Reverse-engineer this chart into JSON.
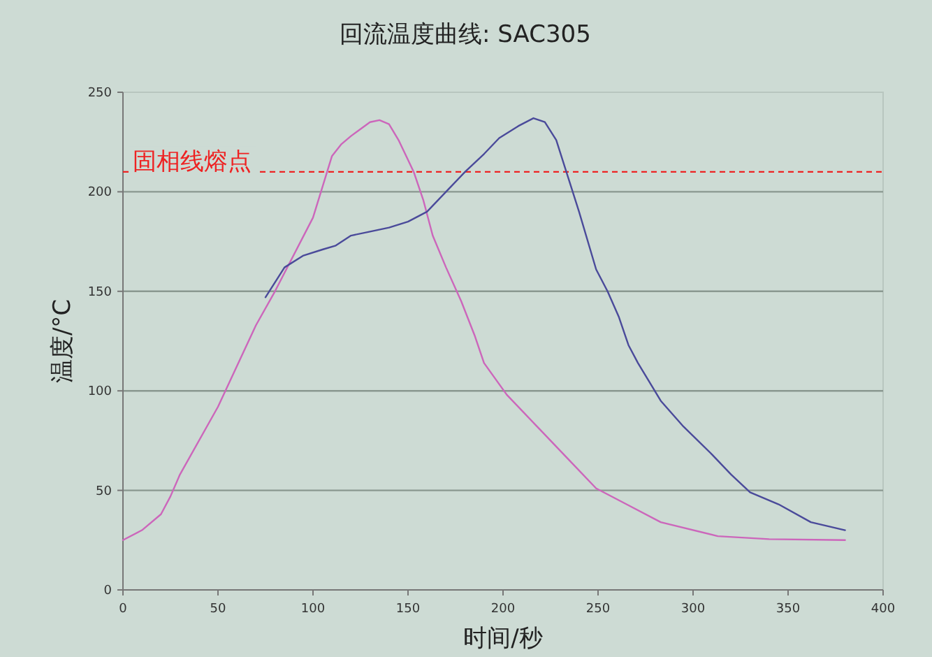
{
  "chart_data": {
    "type": "line",
    "title": "回流温度曲线: SAC305",
    "xlabel": "时间/秒",
    "ylabel": "温度/°C",
    "xlim": [
      0,
      400
    ],
    "xticks": [
      0,
      50,
      100,
      150,
      200,
      250,
      300,
      350,
      400
    ],
    "ylim": [
      0,
      250
    ],
    "yticks": [
      0,
      50,
      100,
      150,
      200,
      250
    ],
    "grid": "y",
    "line_style": "solid",
    "marker": "none",
    "ref_lines": [
      {
        "axis": "y",
        "value": 210,
        "label": "固相线熔点",
        "color": "#ee2222",
        "line_style": "dashed"
      }
    ],
    "series": [
      {
        "color": "#cc66bb",
        "x": [
          0,
          10,
          20,
          25,
          30,
          50,
          70,
          80,
          100,
          110,
          115,
          120,
          130,
          135,
          140,
          145,
          150,
          153,
          158,
          163,
          170,
          178,
          185,
          190,
          202,
          220,
          235,
          249,
          265,
          283,
          313,
          340,
          380
        ],
        "values": [
          25,
          30,
          38,
          47,
          58,
          92,
          133,
          150,
          187,
          218,
          224,
          228,
          235,
          236,
          234,
          226,
          216,
          210,
          196,
          178,
          162,
          145,
          128,
          114,
          98,
          80,
          65,
          51,
          43,
          34,
          27,
          25.5,
          25
        ]
      },
      {
        "color": "#4a4a9a",
        "x": [
          75,
          85,
          95,
          105,
          112,
          120,
          130,
          140,
          150,
          160,
          170,
          180,
          190,
          198,
          208,
          216,
          222,
          228,
          233,
          240,
          249,
          255,
          261,
          266,
          271,
          283,
          295,
          310,
          320,
          330,
          345,
          362,
          380
        ],
        "values": [
          147,
          162,
          168,
          171,
          173,
          178,
          180,
          182,
          185,
          190,
          200,
          210,
          219,
          227,
          233,
          237,
          235,
          226,
          211,
          190,
          161,
          150,
          137,
          123,
          114,
          95,
          82,
          68,
          58,
          49,
          43,
          34,
          30
        ]
      }
    ]
  }
}
